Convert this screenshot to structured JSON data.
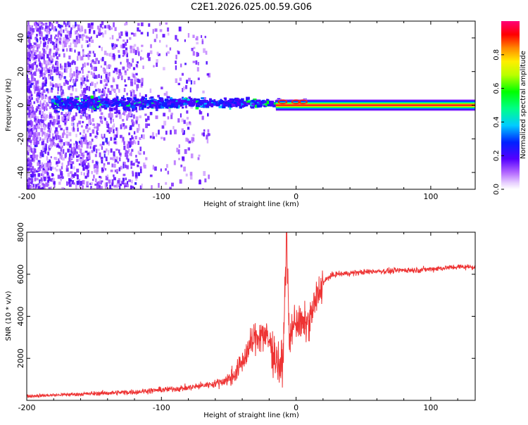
{
  "title": "C2E1.2026.025.00.59.G06",
  "chart_data": [
    {
      "type": "heatmap",
      "name": "spectrogram",
      "xlabel": "Height of straight line (km)",
      "ylabel": "Frequency (Hz)",
      "xlim": [
        -200,
        133
      ],
      "ylim": [
        -50,
        50
      ],
      "xticks": [
        -200,
        -100,
        0,
        100
      ],
      "yticks": [
        -40,
        -20,
        0,
        20,
        40
      ],
      "colorbar": {
        "label": "Normalized spectral amplitude",
        "range": [
          0,
          1
        ],
        "ticks": [
          0.0,
          0.2,
          0.4,
          0.6,
          0.8
        ]
      },
      "description_points": [
        {
          "x": -180,
          "y": 2,
          "v": 0.35
        },
        {
          "x": -150,
          "y": 2,
          "v": 0.4
        },
        {
          "x": -100,
          "y": 2,
          "v": 0.45
        },
        {
          "x": -60,
          "y": 2,
          "v": 0.5
        },
        {
          "x": -20,
          "y": 1,
          "v": 0.55
        },
        {
          "x": 0,
          "y": 0,
          "v": 0.9
        },
        {
          "x": 130,
          "y": 0,
          "v": 1.0
        }
      ]
    },
    {
      "type": "line",
      "name": "snr",
      "xlabel": "Height of straight line (km)",
      "ylabel": "SNR (10 * v/v)",
      "xlim": [
        -200,
        133
      ],
      "ylim": [
        0,
        8000
      ],
      "xticks": [
        -200,
        -100,
        0,
        100
      ],
      "yticks": [
        2000,
        4000,
        6000,
        8000
      ],
      "color": "#ee3333",
      "series": [
        {
          "name": "SNR",
          "x": [
            -200,
            -180,
            -160,
            -140,
            -120,
            -100,
            -90,
            -80,
            -70,
            -60,
            -50,
            -45,
            -40,
            -35,
            -30,
            -25,
            -20,
            -15,
            -10,
            -7,
            -5,
            -3,
            0,
            5,
            10,
            15,
            20,
            25,
            30,
            40,
            50,
            60,
            70,
            80,
            90,
            100,
            110,
            120,
            133
          ],
          "y": [
            200,
            250,
            300,
            350,
            400,
            500,
            550,
            600,
            700,
            800,
            1000,
            1300,
            1800,
            2500,
            3000,
            3200,
            2800,
            2000,
            1500,
            8000,
            2500,
            3500,
            3800,
            3500,
            3800,
            4800,
            5600,
            5900,
            6000,
            6050,
            6100,
            6150,
            6150,
            6200,
            6200,
            6250,
            6300,
            6350,
            6350
          ]
        }
      ]
    }
  ]
}
